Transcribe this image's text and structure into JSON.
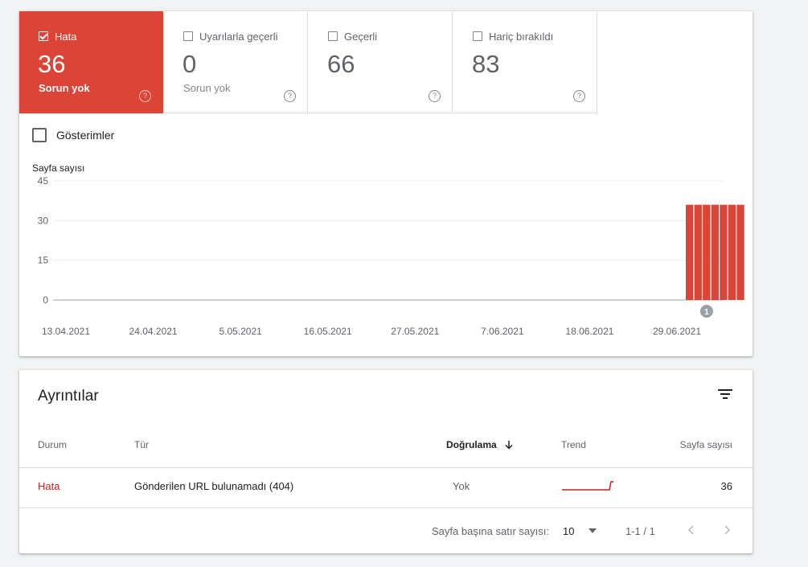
{
  "tiles": [
    {
      "label": "Hata",
      "value": "36",
      "sub": "Sorun yok",
      "active": true
    },
    {
      "label": "Uyarılarla geçerli",
      "value": "0",
      "sub": "Sorun yok",
      "active": false
    },
    {
      "label": "Geçerli",
      "value": "66",
      "sub": "",
      "active": false
    },
    {
      "label": "Hariç bırakıldı",
      "value": "83",
      "sub": "",
      "active": false
    }
  ],
  "impressions_label": "Gösterimler",
  "help_glyph": "?",
  "chart_data": {
    "type": "bar",
    "ylabel": "Sayfa sayısı",
    "ylim": [
      0,
      45
    ],
    "yticks": [
      0,
      15,
      30,
      45
    ],
    "xticks": [
      "13.04.2021",
      "24.04.2021",
      "5.05.2021",
      "16.05.2021",
      "27.05.2021",
      "7.06.2021",
      "18.06.2021",
      "29.06.2021"
    ],
    "start_date": "2021-04-13",
    "end_date": "2021-07-01",
    "bars": [
      {
        "date": "2021-06-27",
        "value": 36
      },
      {
        "date": "2021-06-28",
        "value": 36
      },
      {
        "date": "2021-06-29",
        "value": 36
      },
      {
        "date": "2021-06-30",
        "value": 36
      },
      {
        "date": "2021-07-01",
        "value": 36
      },
      {
        "date": "2021-07-02",
        "value": 36
      },
      {
        "date": "2021-07-03",
        "value": 36
      }
    ],
    "annotation": {
      "date": "2021-06-29",
      "label": "1"
    },
    "bar_color": "#db4437",
    "grid": true
  },
  "details": {
    "title": "Ayrıntılar",
    "headers": {
      "status": "Durum",
      "type": "Tür",
      "validation": "Doğrulama",
      "trend": "Trend",
      "pages": "Sayfa sayısı"
    },
    "rows": [
      {
        "status": "Hata",
        "type": "Gönderilen URL bulunamadı (404)",
        "validation": "Yok",
        "pages": "36"
      }
    ],
    "rows_per_page_label": "Sayfa başına satır sayısı:",
    "rows_per_page": "10",
    "range": "1-1 / 1"
  },
  "colors": {
    "accent": "#db4437",
    "error_text": "#c5221f"
  }
}
